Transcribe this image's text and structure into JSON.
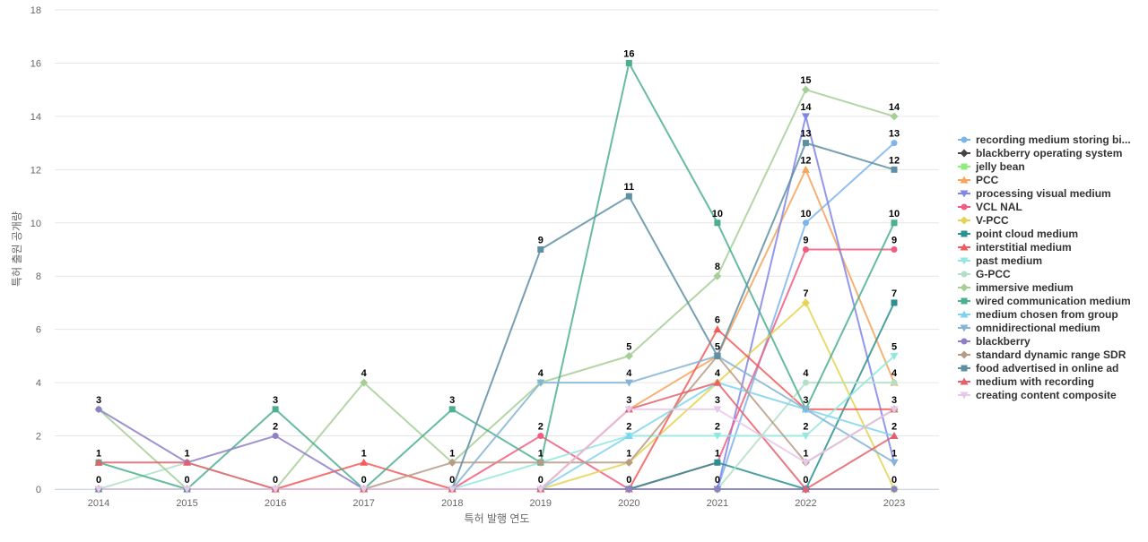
{
  "chart_data": {
    "type": "line",
    "title": "",
    "xlabel": "특허 발행 연도",
    "ylabel": "특허 출원 공개량",
    "x": [
      "2014",
      "2015",
      "2016",
      "2017",
      "2018",
      "2019",
      "2020",
      "2021",
      "2022",
      "2023"
    ],
    "ylim": [
      0,
      18
    ],
    "yticks": [
      "0",
      "2",
      "4",
      "6",
      "8",
      "10",
      "12",
      "14",
      "16",
      "18"
    ],
    "grid": true,
    "legend_position": "right",
    "series": [
      {
        "name": "recording medium storing bi...",
        "color": "#7cb5ec",
        "marker": "circle",
        "values": [
          0,
          0,
          0,
          0,
          0,
          0,
          0,
          0,
          10,
          13
        ]
      },
      {
        "name": "blackberry operating system",
        "color": "#434348",
        "marker": "diamond",
        "values": [
          0,
          0,
          0,
          0,
          0,
          0,
          0,
          0,
          0,
          0
        ]
      },
      {
        "name": "jelly bean",
        "color": "#90ed7d",
        "marker": "square",
        "values": [
          0,
          0,
          0,
          0,
          0,
          0,
          0,
          0,
          0,
          0
        ]
      },
      {
        "name": "PCC",
        "color": "#f7a35c",
        "marker": "triangle",
        "values": [
          0,
          0,
          0,
          0,
          0,
          0,
          3,
          5,
          12,
          4
        ]
      },
      {
        "name": "processing visual medium",
        "color": "#8085e9",
        "marker": "triangle-down",
        "values": [
          0,
          0,
          0,
          0,
          0,
          0,
          0,
          0,
          14,
          1
        ]
      },
      {
        "name": "VCL NAL",
        "color": "#f15c80",
        "marker": "circle",
        "values": [
          0,
          0,
          0,
          0,
          0,
          2,
          0,
          1,
          9,
          9
        ]
      },
      {
        "name": "V-PCC",
        "color": "#e4d354",
        "marker": "diamond",
        "values": [
          0,
          0,
          0,
          0,
          0,
          0,
          1,
          4,
          7,
          0
        ]
      },
      {
        "name": "point cloud medium",
        "color": "#2b908f",
        "marker": "square",
        "values": [
          0,
          0,
          0,
          0,
          0,
          0,
          0,
          1,
          0,
          7
        ]
      },
      {
        "name": "interstitial medium",
        "color": "#f45b5b",
        "marker": "triangle",
        "values": [
          0,
          0,
          0,
          1,
          0,
          0,
          0,
          6,
          3,
          3
        ]
      },
      {
        "name": "past medium",
        "color": "#91e8e1",
        "marker": "triangle-down",
        "values": [
          0,
          0,
          0,
          0,
          0,
          1,
          2,
          2,
          2,
          5
        ]
      },
      {
        "name": "G-PCC",
        "color": "#b2dfc5",
        "marker": "circle",
        "values": [
          0,
          1,
          0,
          0,
          0,
          0,
          0,
          0,
          4,
          4
        ]
      },
      {
        "name": "immersive medium",
        "color": "#a6cf98",
        "marker": "diamond",
        "values": [
          3,
          0,
          0,
          4,
          1,
          4,
          5,
          8,
          15,
          14
        ]
      },
      {
        "name": "wired communication medium",
        "color": "#4caf8e",
        "marker": "square",
        "values": [
          1,
          0,
          3,
          0,
          3,
          1,
          16,
          10,
          3,
          10
        ]
      },
      {
        "name": "medium chosen from group",
        "color": "#7fd3f0",
        "marker": "triangle",
        "values": [
          0,
          0,
          0,
          0,
          0,
          0,
          2,
          4,
          3,
          2
        ]
      },
      {
        "name": "omnidirectional medium",
        "color": "#84b4d8",
        "marker": "triangle-down",
        "values": [
          0,
          0,
          0,
          0,
          0,
          4,
          4,
          5,
          3,
          1
        ]
      },
      {
        "name": "blackberry",
        "color": "#8f7fc9",
        "marker": "circle",
        "values": [
          3,
          1,
          2,
          0,
          0,
          0,
          0,
          0,
          0,
          0
        ]
      },
      {
        "name": "standard dynamic range SDR",
        "color": "#b89b86",
        "marker": "diamond",
        "values": [
          0,
          0,
          0,
          0,
          1,
          1,
          1,
          5,
          1,
          3
        ]
      },
      {
        "name": "food advertised in online ad",
        "color": "#5e8fa3",
        "marker": "square",
        "values": [
          0,
          0,
          0,
          0,
          0,
          9,
          11,
          5,
          13,
          12
        ]
      },
      {
        "name": "medium with recording",
        "color": "#e5606a",
        "marker": "triangle",
        "values": [
          1,
          1,
          0,
          0,
          0,
          0,
          3,
          4,
          0,
          2
        ]
      },
      {
        "name": "creating content composite",
        "color": "#e6c8ea",
        "marker": "triangle-down",
        "values": [
          0,
          0,
          0,
          0,
          0,
          0,
          3,
          3,
          1,
          3
        ]
      }
    ],
    "data_labels": [
      {
        "x": "2014",
        "value": 3,
        "series": "immersive medium"
      },
      {
        "x": "2014",
        "value": 1,
        "series": "wired communication medium"
      },
      {
        "x": "2014",
        "value": 0,
        "series": "recording medium storing bi..."
      },
      {
        "x": "2015",
        "value": 1,
        "series": "blackberry"
      },
      {
        "x": "2015",
        "value": 0,
        "series": "wired communication medium"
      },
      {
        "x": "2016",
        "value": 3,
        "series": "wired communication medium"
      },
      {
        "x": "2016",
        "value": 2,
        "series": "blackberry"
      },
      {
        "x": "2016",
        "value": 0,
        "series": "immersive medium"
      },
      {
        "x": "2017",
        "value": 4,
        "series": "immersive medium"
      },
      {
        "x": "2017",
        "value": 1,
        "series": "interstitial medium"
      },
      {
        "x": "2017",
        "value": 0,
        "series": "blackberry"
      },
      {
        "x": "2018",
        "value": 3,
        "series": "wired communication medium"
      },
      {
        "x": "2018",
        "value": 1,
        "series": "immersive medium"
      },
      {
        "x": "2018",
        "value": 0,
        "series": "food advertised in online ad"
      },
      {
        "x": "2019",
        "value": 9,
        "series": "food advertised in online ad"
      },
      {
        "x": "2019",
        "value": 4,
        "series": "omnidirectional medium"
      },
      {
        "x": "2019",
        "value": 2,
        "series": "VCL NAL"
      },
      {
        "x": "2019",
        "value": 1,
        "series": "wired communication medium"
      },
      {
        "x": "2019",
        "value": 0,
        "series": "V-PCC"
      },
      {
        "x": "2020",
        "value": 16,
        "series": "wired communication medium"
      },
      {
        "x": "2020",
        "value": 11,
        "series": "food advertised in online ad"
      },
      {
        "x": "2020",
        "value": 5,
        "series": "immersive medium"
      },
      {
        "x": "2020",
        "value": 4,
        "series": "omnidirectional medium"
      },
      {
        "x": "2020",
        "value": 3,
        "series": "PCC"
      },
      {
        "x": "2020",
        "value": 2,
        "series": "medium chosen from group"
      },
      {
        "x": "2020",
        "value": 1,
        "series": "V-PCC"
      },
      {
        "x": "2020",
        "value": 0,
        "series": "point cloud medium"
      },
      {
        "x": "2021",
        "value": 10,
        "series": "wired communication medium"
      },
      {
        "x": "2021",
        "value": 8,
        "series": "immersive medium"
      },
      {
        "x": "2021",
        "value": 6,
        "series": "interstitial medium"
      },
      {
        "x": "2021",
        "value": 5,
        "series": "food advertised in online ad"
      },
      {
        "x": "2021",
        "value": 4,
        "series": "medium with recording"
      },
      {
        "x": "2021",
        "value": 3,
        "series": "creating content composite"
      },
      {
        "x": "2021",
        "value": 2,
        "series": "past medium"
      },
      {
        "x": "2021",
        "value": 1,
        "series": "point cloud medium"
      },
      {
        "x": "2021",
        "value": 0,
        "series": "G-PCC"
      },
      {
        "x": "2022",
        "value": 15,
        "series": "immersive medium"
      },
      {
        "x": "2022",
        "value": 14,
        "series": "processing visual medium"
      },
      {
        "x": "2022",
        "value": 13,
        "series": "food advertised in online ad"
      },
      {
        "x": "2022",
        "value": 12,
        "series": "PCC"
      },
      {
        "x": "2022",
        "value": 10,
        "series": "recording medium storing bi..."
      },
      {
        "x": "2022",
        "value": 9,
        "series": "VCL NAL"
      },
      {
        "x": "2022",
        "value": 7,
        "series": "V-PCC"
      },
      {
        "x": "2022",
        "value": 4,
        "series": "G-PCC"
      },
      {
        "x": "2022",
        "value": 3,
        "series": "wired communication medium"
      },
      {
        "x": "2022",
        "value": 2,
        "series": "past medium"
      },
      {
        "x": "2022",
        "value": 1,
        "series": "standard dynamic range SDR"
      },
      {
        "x": "2022",
        "value": 0,
        "series": "point cloud medium"
      },
      {
        "x": "2023",
        "value": 14,
        "series": "immersive medium"
      },
      {
        "x": "2023",
        "value": 13,
        "series": "recording medium storing bi..."
      },
      {
        "x": "2023",
        "value": 12,
        "series": "food advertised in online ad"
      },
      {
        "x": "2023",
        "value": 10,
        "series": "wired communication medium"
      },
      {
        "x": "2023",
        "value": 9,
        "series": "VCL NAL"
      },
      {
        "x": "2023",
        "value": 7,
        "series": "point cloud medium"
      },
      {
        "x": "2023",
        "value": 5,
        "series": "past medium"
      },
      {
        "x": "2023",
        "value": 4,
        "series": "PCC"
      },
      {
        "x": "2023",
        "value": 3,
        "series": "interstitial medium"
      },
      {
        "x": "2023",
        "value": 2,
        "series": "medium with recording"
      },
      {
        "x": "2023",
        "value": 1,
        "series": "omnidirectional medium"
      },
      {
        "x": "2023",
        "value": 0,
        "series": "V-PCC"
      }
    ]
  }
}
